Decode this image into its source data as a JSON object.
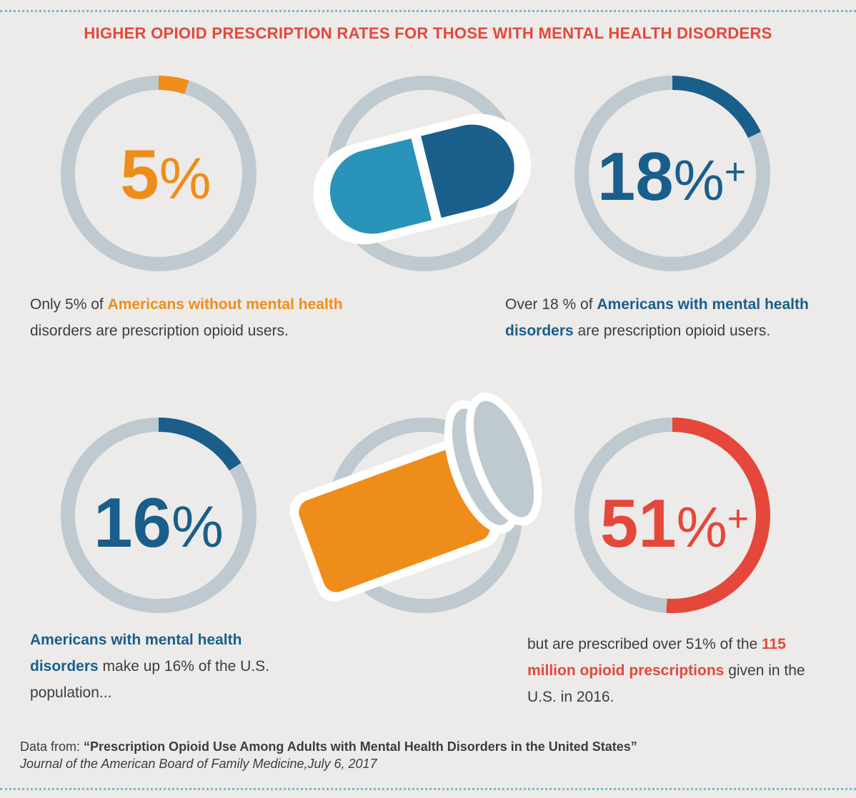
{
  "title": "HIGHER OPIOID PRESCRIPTION RATES FOR THOSE WITH MENTAL HEALTH DISORDERS",
  "colors": {
    "orange": "#ef8d1b",
    "dark_blue": "#1a5f8c",
    "light_blue": "#2a93ba",
    "red": "#e5473a",
    "ring_track": "#bfcad0",
    "background": "#ecebe9"
  },
  "chart_data": {
    "type": "donut",
    "series": [
      {
        "value": 5,
        "label_number": "5",
        "label_suffix": "",
        "color": "#ef8d1b"
      },
      {
        "value": 18,
        "label_number": "18",
        "label_suffix": "+",
        "color": "#1a5f8c"
      },
      {
        "value": 16,
        "label_number": "16",
        "label_suffix": "",
        "color": "#1a5f8c"
      },
      {
        "value": 51,
        "label_number": "51",
        "label_suffix": "+",
        "color": "#e5473a"
      }
    ]
  },
  "captions": {
    "c1": {
      "pre": "Only 5% of ",
      "hl": "Americans without mental health",
      "post": " disorders are prescription opioid users."
    },
    "c2": {
      "pre": "Over 18 % of ",
      "hl": "Americans with mental health disorders",
      "post": " are prescription opioid users."
    },
    "c3": {
      "pre": "",
      "hl": "Americans with mental health disorders",
      "post": " make up 16% of the U.S. population..."
    },
    "c4": {
      "pre": "but are prescribed over 51% of the ",
      "hl": "115 million opioid prescriptions",
      "post": " given in the U.S. in 2016."
    }
  },
  "source": {
    "prefix": "Data from: ",
    "study_title": "“Prescription Opioid Use Among Adults with Mental Health Disorders in the United States”",
    "journal": "Journal of the American Board of Family Medicine,July 6, 2017"
  },
  "icons": [
    "capsule-icon",
    "pill-bottle-icon"
  ]
}
